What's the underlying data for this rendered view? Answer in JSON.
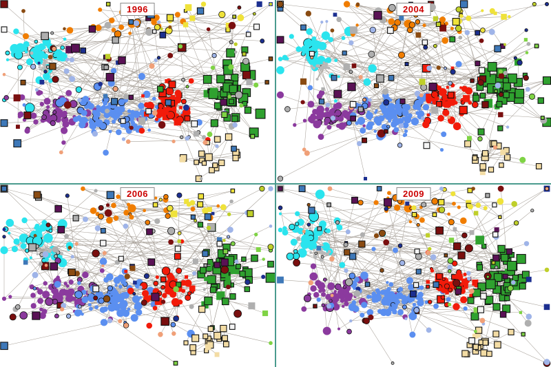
{
  "figure": {
    "description": "Four snapshots of an evolving node-link network, one panel per year",
    "background": "#FFFFFF",
    "divider_color": "#4A9B8E",
    "label_color": "#CC0000",
    "label_border_color": "#8A8A8A",
    "panels": [
      {
        "year": "1996",
        "seed": 1996
      },
      {
        "year": "2004",
        "seed": 2004
      },
      {
        "year": "2006",
        "seed": 2006
      },
      {
        "year": "2009",
        "seed": 2009
      }
    ]
  },
  "chart_data": {
    "type": "network",
    "title": "",
    "panel_labels": [
      "1996",
      "2004",
      "2006",
      "2009"
    ],
    "edge_color": "#999188",
    "cores": [
      "cyan",
      "purple",
      "blue",
      "red",
      "green",
      "orange"
    ],
    "links": [
      [
        "purple",
        "blue"
      ],
      [
        "blue",
        "red"
      ],
      [
        "red",
        "green"
      ],
      [
        "cyan",
        "purple"
      ],
      [
        "orange",
        "red"
      ],
      [
        "blue",
        "orange"
      ],
      [
        "red",
        "tan"
      ],
      [
        "green",
        "yellow"
      ],
      [
        "gray-knot",
        "purple"
      ],
      [
        "cyan",
        "gray-knot"
      ],
      [
        "green",
        "tan"
      ]
    ],
    "clusters": [
      {
        "id": "cyan",
        "color": "#2BE4EE",
        "count": 42,
        "cx": 0.13,
        "cy": 0.29,
        "sx": 0.1,
        "sy": 0.11,
        "shape": "circle",
        "rmin": 2,
        "rmax": 7,
        "hub": 9,
        "strokeProb": 0.15
      },
      {
        "id": "gray-knot",
        "color": "#B8B8B8",
        "count": 16,
        "cx": 0.165,
        "cy": 0.37,
        "sx": 0.035,
        "sy": 0.035,
        "shape": "circle",
        "rmin": 1.5,
        "rmax": 3,
        "hub": 3,
        "strokeProb": 0.2,
        "dense": true
      },
      {
        "id": "purple",
        "color": "#8B3A9E",
        "count": 55,
        "cx": 0.21,
        "cy": 0.62,
        "sx": 0.1,
        "sy": 0.09,
        "shape": "circle",
        "rmin": 2,
        "rmax": 6,
        "hub": 8,
        "strokeProb": 0.2
      },
      {
        "id": "blue",
        "color": "#5B8FF0",
        "count": 95,
        "cx": 0.42,
        "cy": 0.62,
        "sx": 0.12,
        "sy": 0.09,
        "shape": "circle",
        "rmin": 2,
        "rmax": 6,
        "hub": 8,
        "strokeProb": 0.12
      },
      {
        "id": "red",
        "color": "#F21B0A",
        "count": 52,
        "cx": 0.62,
        "cy": 0.56,
        "sx": 0.08,
        "sy": 0.1,
        "shape": "mix",
        "rmin": 2,
        "rmax": 6,
        "hub": 8,
        "strokeProb": 0.3
      },
      {
        "id": "green",
        "color": "#2FA12F",
        "count": 46,
        "cx": 0.82,
        "cy": 0.5,
        "sx": 0.08,
        "sy": 0.13,
        "shape": "square",
        "rmin": 3,
        "rmax": 7,
        "hub": 7,
        "strokeProb": 0.9
      },
      {
        "id": "orange",
        "color": "#F07D00",
        "count": 26,
        "cx": 0.48,
        "cy": 0.13,
        "sx": 0.16,
        "sy": 0.08,
        "shape": "circle",
        "rmin": 2,
        "rmax": 5,
        "hub": 6,
        "strokeProb": 0.25
      },
      {
        "id": "tan",
        "color": "#F3DCA4",
        "count": 18,
        "cx": 0.76,
        "cy": 0.86,
        "sx": 0.08,
        "sy": 0.07,
        "shape": "square",
        "rmin": 3,
        "rmax": 5,
        "hub": 5,
        "strokeProb": 0.9
      },
      {
        "id": "yellow",
        "color": "#EFE23A",
        "count": 14,
        "cx": 0.7,
        "cy": 0.1,
        "sx": 0.13,
        "sy": 0.07,
        "shape": "mix",
        "rmin": 2,
        "rmax": 5,
        "hub": 4,
        "strokeProb": 0.5
      },
      {
        "id": "sc-darkred",
        "color": "#7A0F0F",
        "count": 16,
        "cx": 0.5,
        "cy": 0.4,
        "sx": 0.46,
        "sy": 0.37,
        "dist": "uniform",
        "shape": "mix",
        "rmin": 2.5,
        "rmax": 6,
        "strokeProb": 0.6,
        "scatter": true
      },
      {
        "id": "sc-navy",
        "color": "#1C2F90",
        "count": 12,
        "cx": 0.55,
        "cy": 0.34,
        "sx": 0.42,
        "sy": 0.32,
        "dist": "uniform",
        "shape": "mix",
        "rmin": 2,
        "rmax": 4.5,
        "strokeProb": 0.5,
        "scatter": true
      },
      {
        "id": "sc-gray",
        "color": "#AFAFAF",
        "count": 22,
        "cx": 0.5,
        "cy": 0.4,
        "sx": 0.46,
        "sy": 0.37,
        "dist": "uniform",
        "shape": "mix",
        "rmin": 2,
        "rmax": 5.5,
        "strokeProb": 0.4,
        "scatter": true
      },
      {
        "id": "sc-periwinkle",
        "color": "#9FB4E8",
        "count": 20,
        "cx": 0.52,
        "cy": 0.45,
        "sx": 0.4,
        "sy": 0.35,
        "dist": "uniform",
        "shape": "circle",
        "rmin": 2,
        "rmax": 4.5,
        "strokeProb": 0.2,
        "scatter": true
      },
      {
        "id": "sc-darkpurple",
        "color": "#5A1255",
        "count": 9,
        "cx": 0.5,
        "cy": 0.35,
        "sx": 0.35,
        "sy": 0.3,
        "dist": "uniform",
        "shape": "square",
        "rmin": 3,
        "rmax": 6,
        "strokeProb": 0.95,
        "scatter": true
      },
      {
        "id": "sc-lightgreen",
        "color": "#7FD345",
        "count": 10,
        "cx": 0.8,
        "cy": 0.55,
        "sx": 0.17,
        "sy": 0.3,
        "dist": "uniform",
        "shape": "mix",
        "rmin": 2,
        "rmax": 4.5,
        "strokeProb": 0.5,
        "scatter": true
      },
      {
        "id": "sc-salmon",
        "color": "#F0A078",
        "count": 9,
        "cx": 0.45,
        "cy": 0.55,
        "sx": 0.35,
        "sy": 0.3,
        "dist": "uniform",
        "shape": "circle",
        "rmin": 2,
        "rmax": 4,
        "strokeProb": 0.2,
        "scatter": true
      },
      {
        "id": "sc-steelblue",
        "color": "#3E78B8",
        "count": 9,
        "cx": 0.45,
        "cy": 0.33,
        "sx": 0.4,
        "sy": 0.28,
        "dist": "uniform",
        "shape": "square",
        "rmin": 3,
        "rmax": 5.5,
        "strokeProb": 0.9,
        "scatter": true
      },
      {
        "id": "sc-white",
        "color": "#F5F5F5",
        "count": 7,
        "cx": 0.6,
        "cy": 0.45,
        "sx": 0.35,
        "sy": 0.35,
        "dist": "uniform",
        "shape": "square",
        "rmin": 2.5,
        "rmax": 4.5,
        "strokeProb": 1,
        "scatter": true
      },
      {
        "id": "sc-olive",
        "color": "#BFCF2A",
        "count": 8,
        "cx": 0.72,
        "cy": 0.25,
        "sx": 0.22,
        "sy": 0.2,
        "dist": "uniform",
        "shape": "mix",
        "rmin": 2,
        "rmax": 4.5,
        "strokeProb": 0.5,
        "scatter": true
      },
      {
        "id": "sc-brown",
        "color": "#8A4B12",
        "count": 8,
        "cx": 0.35,
        "cy": 0.28,
        "sx": 0.3,
        "sy": 0.23,
        "dist": "uniform",
        "shape": "mix",
        "rmin": 2,
        "rmax": 5,
        "strokeProb": 0.5,
        "scatter": true
      }
    ]
  }
}
